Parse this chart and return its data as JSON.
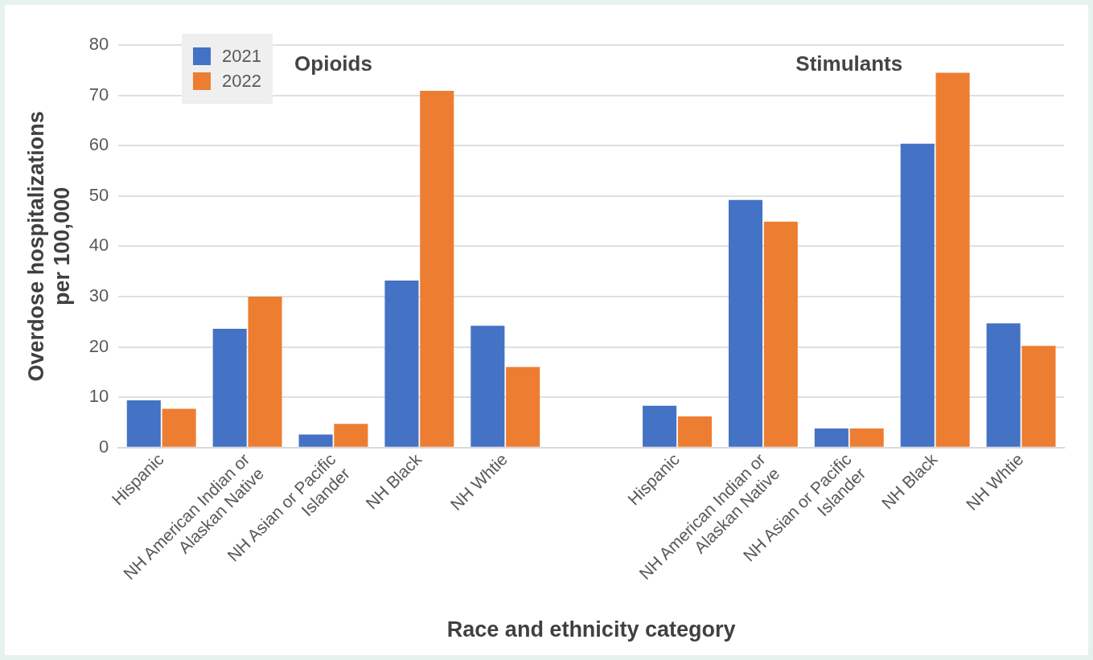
{
  "chart_data": {
    "type": "bar",
    "xlabel": "Race and ethnicity category",
    "ylabel": "Overdose hospitalizations per 100,000",
    "categories": [
      "Hispanic",
      "NH American Indian or Alaskan Native",
      "NH Asian or Pacific Islander",
      "NH Black",
      "NH Whtie",
      null,
      "Hispanic",
      "NH American Indian or Alaskan Native",
      "NH Asian or Pacific Islander",
      "NH Black",
      "NH Whtie"
    ],
    "series": [
      {
        "name": "2021",
        "color": "#4472c4",
        "values": [
          9.4,
          23.6,
          2.6,
          33.2,
          24.2,
          null,
          8.3,
          49.2,
          3.8,
          60.4,
          24.7
        ]
      },
      {
        "name": "2022",
        "color": "#ed7d31",
        "values": [
          7.7,
          30,
          4.7,
          70.9,
          16,
          null,
          6.2,
          44.9,
          3.8,
          74.5,
          20.2
        ]
      }
    ],
    "annotations": [
      "Opioids",
      "Stimulants"
    ],
    "ylim": [
      0,
      80
    ],
    "yticks": [
      0,
      10,
      20,
      30,
      40,
      50,
      60,
      70,
      80
    ],
    "grid": "y",
    "legend": "top left"
  }
}
